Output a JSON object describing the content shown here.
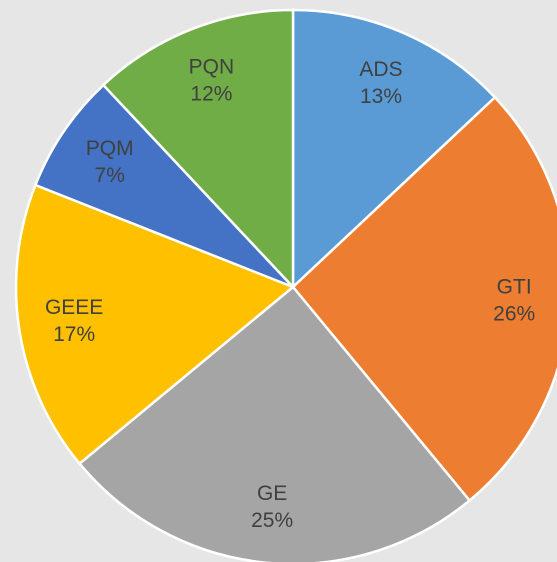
{
  "chart_data": {
    "type": "pie",
    "categories": [
      "ADS",
      "GTI",
      "GE",
      "GEEE",
      "PQM",
      "PQN"
    ],
    "values": [
      13,
      26,
      25,
      17,
      7,
      12
    ],
    "value_labels": [
      "13%",
      "26%",
      "25%",
      "17%",
      "7%",
      "12%"
    ],
    "colors": [
      "#5b9bd5",
      "#ed7d31",
      "#a5a5a5",
      "#ffc000",
      "#4472c4",
      "#70ad47"
    ]
  }
}
